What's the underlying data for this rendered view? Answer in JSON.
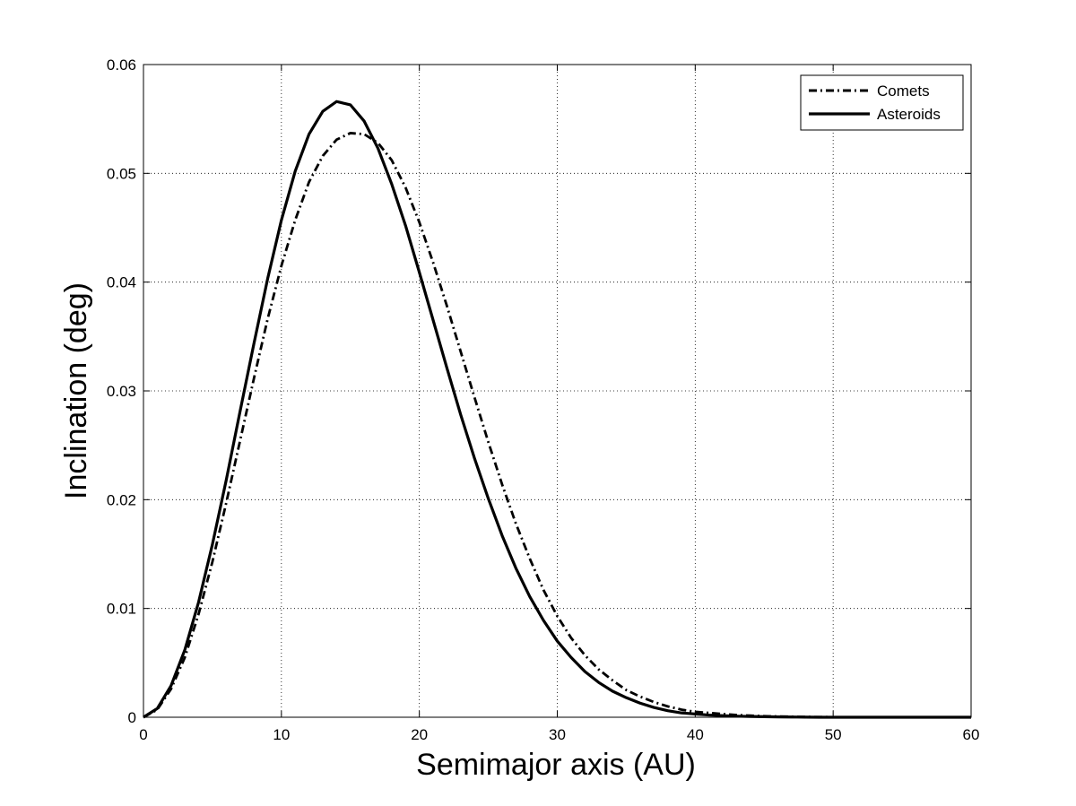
{
  "chart_data": {
    "type": "line",
    "title": "",
    "xlabel": "Semimajor axis (AU)",
    "ylabel": "Inclination (deg)",
    "xlim": [
      0,
      60
    ],
    "ylim": [
      0,
      0.06
    ],
    "xticks": [
      0,
      10,
      20,
      30,
      40,
      50,
      60
    ],
    "yticks": [
      0,
      0.01,
      0.02,
      0.03,
      0.04,
      0.05,
      0.06
    ],
    "xtick_labels": [
      "0",
      "10",
      "20",
      "30",
      "40",
      "50",
      "60"
    ],
    "ytick_labels": [
      "0",
      "0.01",
      "0.02",
      "0.03",
      "0.04",
      "0.05",
      "0.06"
    ],
    "grid": true,
    "legend_position": "top-right",
    "series": [
      {
        "name": "Comets",
        "line_style": "dash-dot",
        "color": "#000000",
        "x": [
          0,
          1,
          2,
          3,
          4,
          5,
          6,
          7,
          8,
          9,
          10,
          11,
          12,
          13,
          14,
          15,
          16,
          17,
          18,
          19,
          20,
          21,
          22,
          23,
          24,
          25,
          26,
          27,
          28,
          29,
          30,
          31,
          32,
          33,
          34,
          35,
          36,
          37,
          38,
          39,
          40,
          41,
          42,
          43,
          44,
          45,
          46,
          47,
          48,
          49,
          50,
          52,
          54,
          56,
          58,
          60
        ],
        "y": [
          0,
          0.0007,
          0.0026,
          0.0055,
          0.0095,
          0.0143,
          0.0197,
          0.0254,
          0.0311,
          0.0366,
          0.0415,
          0.0457,
          0.0492,
          0.0516,
          0.0531,
          0.0537,
          0.0536,
          0.0528,
          0.0512,
          0.0487,
          0.0455,
          0.0418,
          0.0378,
          0.0336,
          0.0294,
          0.0253,
          0.0214,
          0.0178,
          0.0146,
          0.0117,
          0.0093,
          0.0073,
          0.0057,
          0.0044,
          0.0034,
          0.0025,
          0.0019,
          0.0014,
          0.001,
          0.0007,
          0.0005,
          0.0004,
          0.0003,
          0.0002,
          0.00015,
          0.0001,
          7e-05,
          5e-05,
          3e-05,
          2e-05,
          1e-05,
          0,
          0,
          0,
          0,
          0
        ]
      },
      {
        "name": "Asteroids",
        "line_style": "solid",
        "color": "#000000",
        "x": [
          0,
          1,
          2,
          3,
          4,
          5,
          6,
          7,
          8,
          9,
          10,
          11,
          12,
          13,
          14,
          15,
          16,
          17,
          18,
          19,
          20,
          21,
          22,
          23,
          24,
          25,
          26,
          27,
          28,
          29,
          30,
          31,
          32,
          33,
          34,
          35,
          36,
          37,
          38,
          39,
          40,
          41,
          42,
          43,
          44,
          45,
          46,
          47,
          48,
          49,
          50,
          52,
          54,
          56,
          58,
          60
        ],
        "y": [
          0,
          0.0008,
          0.0029,
          0.0062,
          0.0106,
          0.0159,
          0.0218,
          0.0281,
          0.0343,
          0.0403,
          0.0457,
          0.0502,
          0.0536,
          0.0557,
          0.0566,
          0.0563,
          0.0548,
          0.0523,
          0.049,
          0.0452,
          0.0409,
          0.0365,
          0.0321,
          0.0278,
          0.0238,
          0.0201,
          0.0167,
          0.0137,
          0.0111,
          0.0089,
          0.007,
          0.0055,
          0.0042,
          0.0032,
          0.0024,
          0.0018,
          0.0013,
          0.0009,
          0.0006,
          0.0004,
          0.0003,
          0.0002,
          0.00015,
          0.0001,
          7e-05,
          5e-05,
          3e-05,
          2e-05,
          1e-05,
          0,
          0,
          0,
          0,
          0,
          0,
          0
        ]
      }
    ]
  }
}
